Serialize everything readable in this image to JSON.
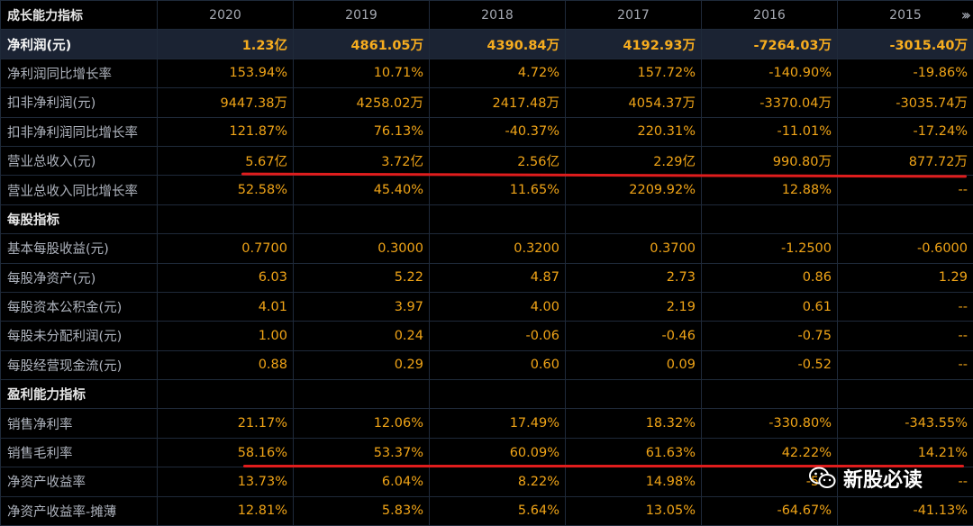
{
  "header": {
    "title": "成长能力指标",
    "years": [
      "2020",
      "2019",
      "2018",
      "2017",
      "2016",
      "2015"
    ],
    "next_icon": "double-chevron-right-icon"
  },
  "growth_rows": [
    {
      "label": "净利润(元)",
      "values": [
        "1.23亿",
        "4861.05万",
        "4390.84万",
        "4192.93万",
        "-7264.03万",
        "-3015.40万"
      ]
    },
    {
      "label": "净利润同比增长率",
      "values": [
        "153.94%",
        "10.71%",
        "4.72%",
        "157.72%",
        "-140.90%",
        "-19.86%"
      ]
    },
    {
      "label": "扣非净利润(元)",
      "values": [
        "9447.38万",
        "4258.02万",
        "2417.48万",
        "4054.37万",
        "-3370.04万",
        "-3035.74万"
      ]
    },
    {
      "label": "扣非净利润同比增长率",
      "values": [
        "121.87%",
        "76.13%",
        "-40.37%",
        "220.31%",
        "-11.01%",
        "-17.24%"
      ]
    },
    {
      "label": "营业总收入(元)",
      "values": [
        "5.67亿",
        "3.72亿",
        "2.56亿",
        "2.29亿",
        "990.80万",
        "877.72万"
      ]
    },
    {
      "label": "营业总收入同比增长率",
      "values": [
        "52.58%",
        "45.40%",
        "11.65%",
        "2209.92%",
        "12.88%",
        "--"
      ]
    }
  ],
  "per_share": {
    "title": "每股指标",
    "rows": [
      {
        "label": "基本每股收益(元)",
        "values": [
          "0.7700",
          "0.3000",
          "0.3200",
          "0.3700",
          "-1.2500",
          "-0.6000"
        ]
      },
      {
        "label": "每股净资产(元)",
        "values": [
          "6.03",
          "5.22",
          "4.87",
          "2.73",
          "0.86",
          "1.29"
        ]
      },
      {
        "label": "每股资本公积金(元)",
        "values": [
          "4.01",
          "3.97",
          "4.00",
          "2.19",
          "0.61",
          "--"
        ]
      },
      {
        "label": "每股未分配利润(元)",
        "values": [
          "1.00",
          "0.24",
          "-0.06",
          "-0.46",
          "-0.75",
          "--"
        ]
      },
      {
        "label": "每股经营现金流(元)",
        "values": [
          "0.88",
          "0.29",
          "0.60",
          "0.09",
          "-0.52",
          "--"
        ]
      }
    ]
  },
  "profitability": {
    "title": "盈利能力指标",
    "rows": [
      {
        "label": "销售净利率",
        "values": [
          "21.17%",
          "12.06%",
          "17.49%",
          "18.32%",
          "-330.80%",
          "-343.55%"
        ]
      },
      {
        "label": "销售毛利率",
        "values": [
          "58.16%",
          "53.37%",
          "60.09%",
          "61.63%",
          "42.22%",
          "14.21%"
        ]
      },
      {
        "label": "净资产收益率",
        "values": [
          "13.73%",
          "6.04%",
          "8.22%",
          "14.98%",
          "-50.",
          "--"
        ]
      },
      {
        "label": "净资产收益率-摊薄",
        "values": [
          "12.81%",
          "5.83%",
          "5.64%",
          "13.05%",
          "-64.67%",
          "-41.13%"
        ]
      }
    ]
  },
  "watermark": {
    "text": "新股必读",
    "icon": "wechat-icon"
  },
  "colors": {
    "value": "#f0a417",
    "label": "#aeb3bd",
    "highlight_row": "#1b2333",
    "marker": "#e01d1d",
    "border": "#1f2a3a"
  }
}
